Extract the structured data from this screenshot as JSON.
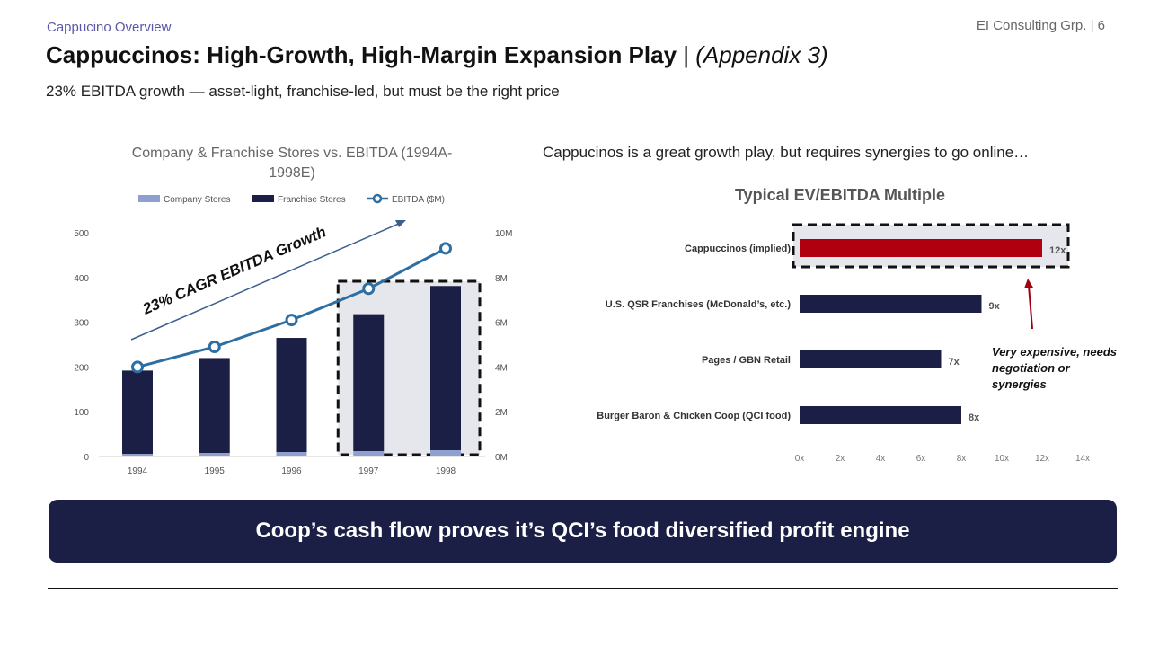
{
  "header": {
    "section_label": "Cappucino Overview",
    "page_ref": "EI Consulting Grp. | 6",
    "title_main": "Cappuccinos: High-Growth, High-Margin Expansion Play",
    "title_sep": " | ",
    "title_appendix": "(Appendix 3)",
    "subtitle": "23% EBITDA growth — asset-light, franchise-led, but must be the right price"
  },
  "right_headline": "Cappucinos is a great growth play, but requires synergies to go online…",
  "banner": {
    "text": "Coop’s cash flow proves it’s QCI’s food diversified profit engine"
  },
  "colors": {
    "company": "#8fa0cf",
    "franchise": "#1b1f45",
    "ebitda": "#2e6fa3",
    "highlight": "#b00010",
    "navy": "#1b1f45"
  },
  "chart_data": [
    {
      "type": "bar",
      "title": "Company & Franchise Stores vs. EBITDA (1994A-1998E)",
      "categories": [
        "1994",
        "1995",
        "1996",
        "1997",
        "1998"
      ],
      "series": [
        {
          "name": "Company Stores",
          "values": [
            6,
            8,
            10,
            12,
            14
          ]
        },
        {
          "name": "Franchise Stores",
          "values": [
            186,
            212,
            255,
            306,
            367
          ]
        },
        {
          "name": "EBITDA ($M)",
          "type": "line",
          "axis": "right",
          "values": [
            4.0,
            4.9,
            6.1,
            7.5,
            9.3
          ]
        }
      ],
      "ylim": [
        0,
        500
      ],
      "yticks": [
        "0",
        "100",
        "200",
        "300",
        "400",
        "500"
      ],
      "y2lim": [
        0,
        10
      ],
      "y2ticks": [
        "0M",
        "2M",
        "4M",
        "6M",
        "8M",
        "10M"
      ],
      "stacked": true,
      "legend": "top",
      "annotation": "23% CAGR EBITDA Growth",
      "highlight_categories": [
        "1997",
        "1998"
      ]
    },
    {
      "type": "bar",
      "orientation": "horizontal",
      "title": "Typical EV/EBITDA Multiple",
      "categories": [
        "Cappuccinos (implied)",
        "U.S. QSR Franchises (McDonald’s, etc.)",
        "Pages / GBN Retail",
        "Burger Baron & Chicken Coop (QCI food)"
      ],
      "values": [
        12,
        9,
        7,
        8
      ],
      "labels": [
        "12x",
        "9x",
        "7x",
        "8x"
      ],
      "xlim": [
        0,
        14
      ],
      "xticks": [
        "0x",
        "2x",
        "4x",
        "6x",
        "8x",
        "10x",
        "12x",
        "14x"
      ],
      "highlight_index": 0,
      "annotation": [
        "Very expensive, needs",
        "negotiation or",
        "synergies"
      ]
    }
  ]
}
